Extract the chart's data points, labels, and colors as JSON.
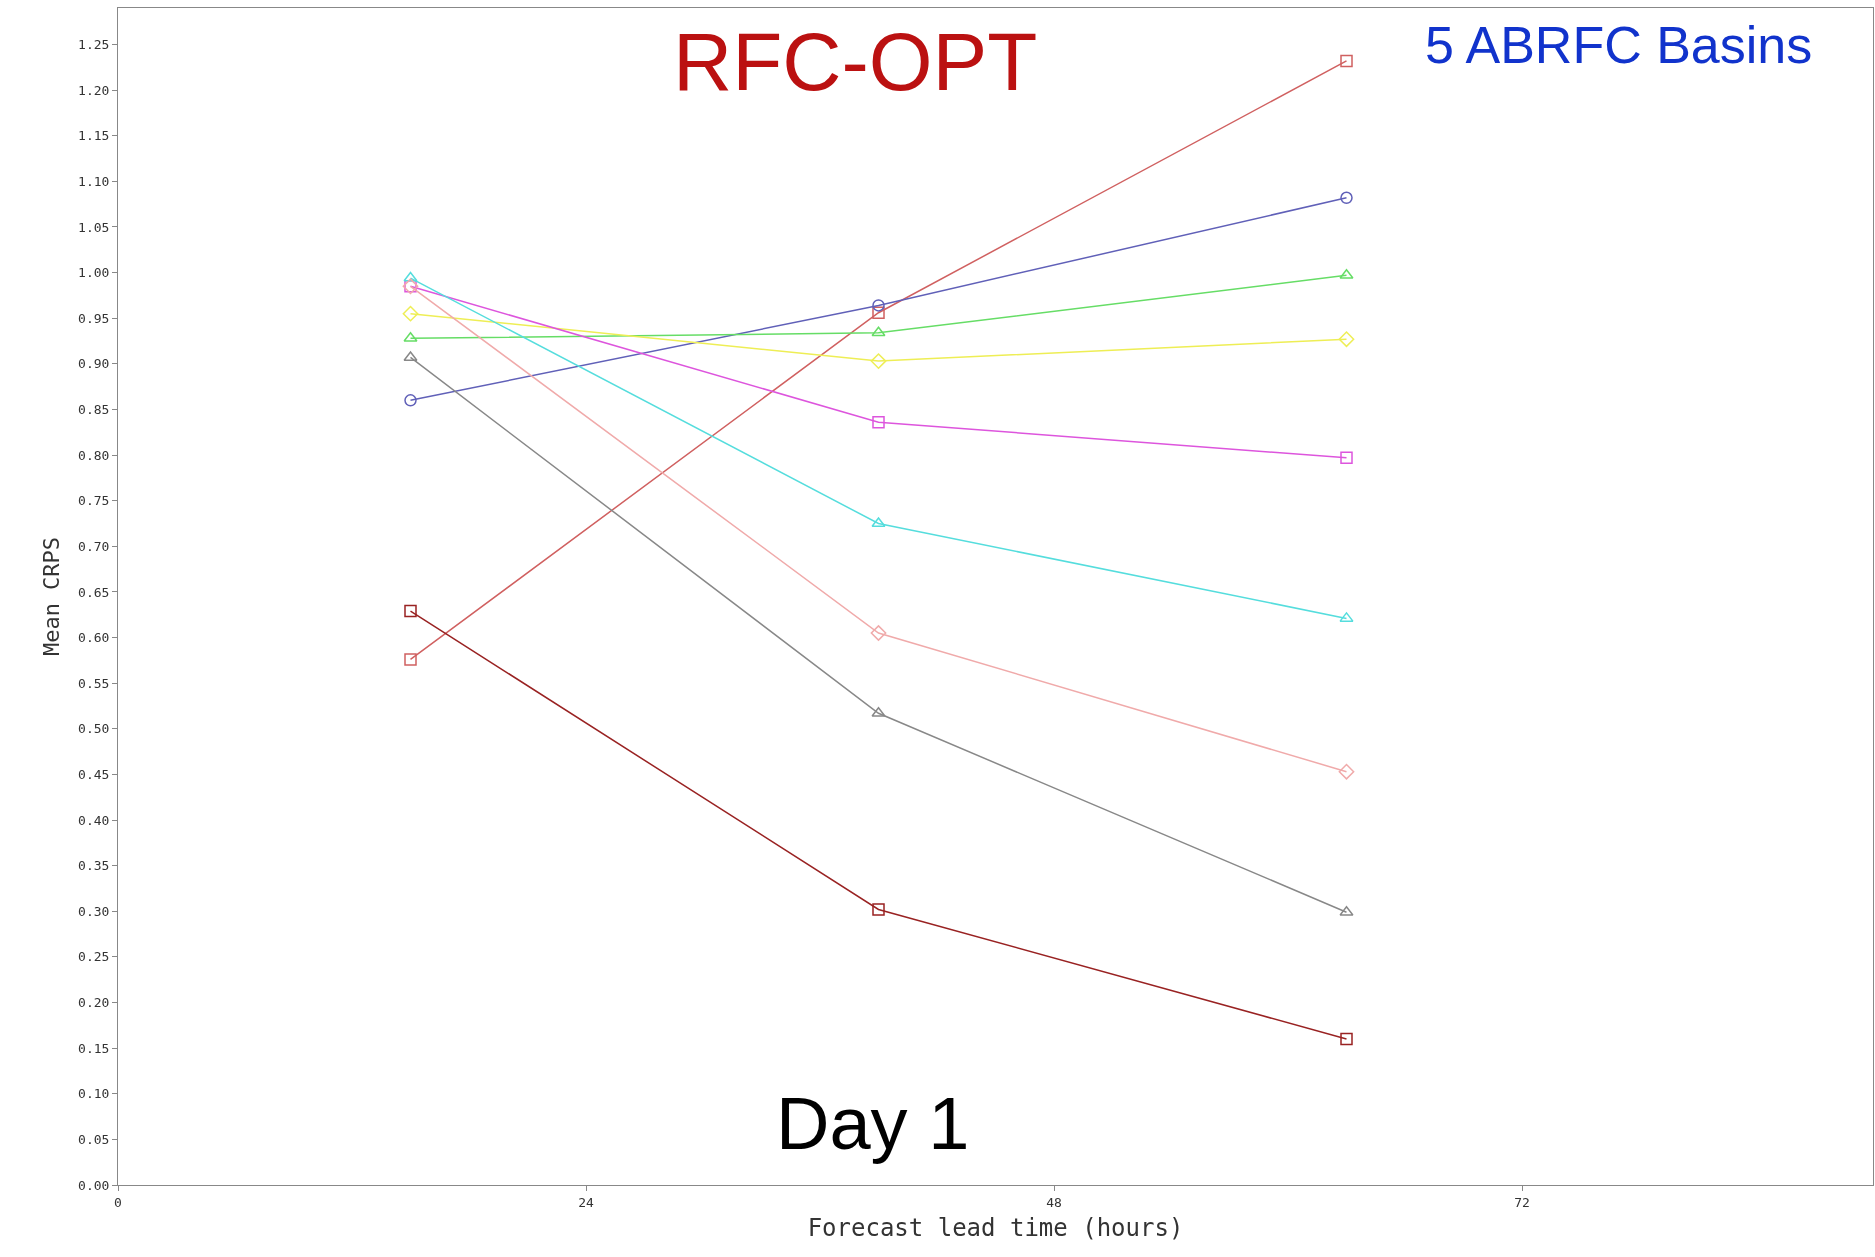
{
  "chart_data": {
    "type": "line",
    "xlabel": "Forecast lead time (hours)",
    "ylabel": "Mean CRPS",
    "annotations": [
      "RFC-OPT",
      "5 ABRFC Basins",
      "Day 1"
    ],
    "x": [
      15,
      39,
      63
    ],
    "xlim": [
      0,
      90
    ],
    "xticks": [
      0,
      24,
      48,
      72
    ],
    "ylim": [
      0,
      1.29
    ],
    "yticks": [
      {
        "value": 0,
        "label": "0.00"
      },
      {
        "value": 0.05,
        "label": "0.05"
      },
      {
        "value": 0.1,
        "label": "0.10"
      },
      {
        "value": 0.15,
        "label": "0.15"
      },
      {
        "value": 0.2,
        "label": "0.20"
      },
      {
        "value": 0.25,
        "label": "0.25"
      },
      {
        "value": 0.3,
        "label": "0.30"
      },
      {
        "value": 0.35,
        "label": "0.35"
      },
      {
        "value": 0.4,
        "label": "0.40"
      },
      {
        "value": 0.45,
        "label": "0.45"
      },
      {
        "value": 0.5,
        "label": "0.50"
      },
      {
        "value": 0.55,
        "label": "0.55"
      },
      {
        "value": 0.6,
        "label": "0.60"
      },
      {
        "value": 0.65,
        "label": "0.65"
      },
      {
        "value": 0.7,
        "label": "0.70"
      },
      {
        "value": 0.75,
        "label": "0.75"
      },
      {
        "value": 0.8,
        "label": "0.80"
      },
      {
        "value": 0.85,
        "label": "0.85"
      },
      {
        "value": 0.9,
        "label": "0.90"
      },
      {
        "value": 0.95,
        "label": "0.95"
      },
      {
        "value": 1,
        "label": "1.00"
      },
      {
        "value": 1.05,
        "label": "1.05"
      },
      {
        "value": 1.1,
        "label": "1.10"
      },
      {
        "value": 1.15,
        "label": "1.15"
      },
      {
        "value": 1.2,
        "label": "1.20"
      },
      {
        "value": 1.25,
        "label": "1.25"
      }
    ],
    "grid": false,
    "line_style": "solid",
    "series": [
      {
        "color": "#d06060",
        "marker": "square",
        "values": [
          0.576,
          0.956,
          1.232
        ]
      },
      {
        "color": "#6060b8",
        "marker": "circle",
        "values": [
          0.86,
          0.964,
          1.082
        ]
      },
      {
        "color": "#66dd66",
        "marker": "triangle",
        "values": [
          0.928,
          0.934,
          0.997
        ]
      },
      {
        "color": "#eeee55",
        "marker": "diamond",
        "values": [
          0.955,
          0.903,
          0.927
        ]
      },
      {
        "color": "#dd55dd",
        "marker": "square",
        "values": [
          0.985,
          0.836,
          0.797
        ]
      },
      {
        "color": "#55dddd",
        "marker": "triangle",
        "values": [
          0.994,
          0.725,
          0.621
        ]
      },
      {
        "color": "#f0aaaa",
        "marker": "diamond",
        "values": [
          0.985,
          0.605,
          0.453
        ]
      },
      {
        "color": "#888888",
        "marker": "triangle",
        "values": [
          0.907,
          0.517,
          0.299
        ]
      },
      {
        "color": "#992222",
        "marker": "square",
        "values": [
          0.629,
          0.302,
          0.16
        ]
      }
    ]
  }
}
